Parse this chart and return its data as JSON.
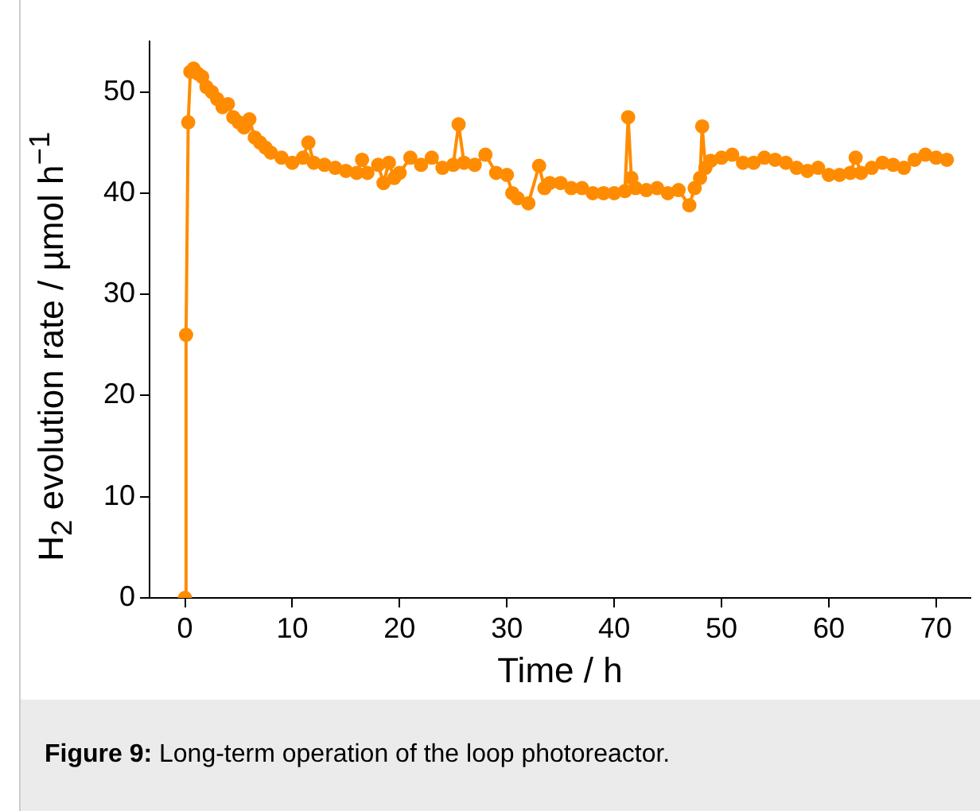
{
  "chart_data": {
    "type": "line",
    "xlabel": "Time / h",
    "ylabel": "H$_{2}$ evolution rate / µmol h$^{−1}$",
    "color": "#ff8c00",
    "marker": "circle",
    "grid": false,
    "legend": false,
    "annotations": [
      "Figure 9: Long-term operation of the loop photoreactor."
    ],
    "xlim": [
      -3.3,
      73.2
    ],
    "xticks": [
      0,
      10,
      20,
      30,
      40,
      50,
      60,
      70
    ],
    "ylim": [
      0,
      55
    ],
    "yticks": [
      0,
      10,
      20,
      30,
      40,
      50
    ],
    "x": [
      0,
      0.1,
      0.3,
      0.5,
      0.8,
      1.2,
      1.6,
      2,
      2.5,
      3,
      3.5,
      4,
      4.5,
      5,
      5.5,
      6,
      6.5,
      7,
      7.5,
      8,
      9,
      10,
      11,
      11.5,
      12,
      13,
      14,
      15,
      16,
      16.5,
      17,
      18,
      18.5,
      19,
      19.5,
      20,
      21,
      22,
      23,
      24,
      25,
      25.5,
      26,
      27,
      28,
      29,
      30,
      30.5,
      31,
      32,
      33,
      33.5,
      34,
      35,
      36,
      37,
      38,
      39,
      40,
      41,
      41.3,
      41.6,
      42,
      43,
      44,
      45,
      46,
      47,
      47.5,
      48,
      48.2,
      48.5,
      49,
      50,
      51,
      52,
      53,
      54,
      55,
      56,
      57,
      58,
      59,
      60,
      61,
      62,
      62.5,
      63,
      64,
      65,
      66,
      67,
      68,
      69,
      70,
      71
    ],
    "values": [
      0,
      26,
      47,
      52,
      52.3,
      51.8,
      51.5,
      50.5,
      50,
      49.3,
      48.5,
      48.8,
      47.5,
      47,
      46.5,
      47.3,
      45.5,
      45,
      44.5,
      44,
      43.5,
      43,
      43.5,
      45,
      43,
      42.8,
      42.5,
      42.2,
      42,
      43.3,
      42,
      42.8,
      41,
      43,
      41.5,
      42,
      43.5,
      42.8,
      43.5,
      42.5,
      42.8,
      46.8,
      43,
      42.8,
      43.8,
      42,
      41.8,
      40,
      39.5,
      39,
      42.7,
      40.5,
      41,
      41,
      40.5,
      40.5,
      40,
      40,
      40,
      40.2,
      47.5,
      41.5,
      40.5,
      40.3,
      40.5,
      40,
      40.3,
      38.8,
      40.5,
      41.5,
      46.6,
      42.5,
      43.2,
      43.5,
      43.8,
      43,
      43,
      43.5,
      43.3,
      43,
      42.5,
      42.2,
      42.5,
      41.8,
      41.8,
      42,
      43.5,
      42,
      42.5,
      43,
      42.8,
      42.5,
      43.3,
      43.8,
      43.5,
      43.3
    ]
  }
}
